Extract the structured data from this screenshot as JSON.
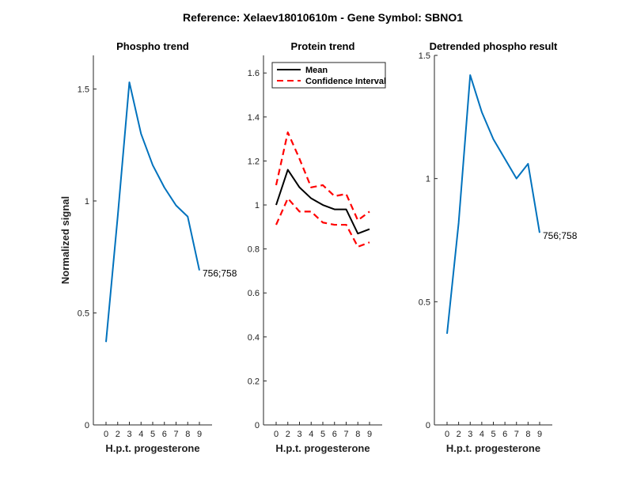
{
  "figure": {
    "suptitle": "Reference:  Xelaev18010610m - Gene Symbol:  SBNO1"
  },
  "chart_data": [
    {
      "type": "line",
      "title": "Phospho trend",
      "xlabel": "H.p.t. progesterone",
      "ylabel": "Normalized signal",
      "categories": [
        "0",
        "2",
        "3",
        "4",
        "5",
        "6",
        "7",
        "8",
        "9"
      ],
      "ylim": [
        0,
        1.65
      ],
      "yticks": [
        0,
        0.5,
        1,
        1.5
      ],
      "ytick_labels": [
        "0",
        "0.5",
        "1",
        "1.5"
      ],
      "series": [
        {
          "values": [
            0.37,
            0.93,
            1.53,
            1.3,
            1.16,
            1.06,
            0.98,
            0.93,
            0.69
          ],
          "color": "#0072BD",
          "style": "solid"
        }
      ],
      "annotation": "756;758"
    },
    {
      "type": "line",
      "title": "Protein trend",
      "xlabel": "H.p.t. progesterone",
      "ylabel": "",
      "categories": [
        "0",
        "2",
        "3",
        "4",
        "5",
        "6",
        "7",
        "8",
        "9"
      ],
      "ylim": [
        0,
        1.68
      ],
      "yticks": [
        0,
        0.2,
        0.4,
        0.6,
        0.8,
        1,
        1.2,
        1.4,
        1.6
      ],
      "ytick_labels": [
        "0",
        "0.2",
        "0.4",
        "0.6",
        "0.8",
        "1",
        "1.2",
        "1.4",
        "1.6"
      ],
      "legend": {
        "placement": "top-left",
        "entries": [
          "Mean",
          "Confidence Interval"
        ]
      },
      "series": [
        {
          "name": "Mean",
          "values": [
            1.0,
            1.16,
            1.08,
            1.03,
            1.0,
            0.98,
            0.98,
            0.87,
            0.89
          ],
          "color": "#000000",
          "style": "solid"
        },
        {
          "name": "Confidence Interval",
          "values": [
            1.09,
            1.33,
            1.21,
            1.08,
            1.09,
            1.04,
            1.05,
            0.93,
            0.97
          ],
          "color": "#FF0000",
          "style": "dashed"
        },
        {
          "name": "Confidence Interval",
          "values": [
            0.91,
            1.03,
            0.97,
            0.97,
            0.92,
            0.91,
            0.91,
            0.81,
            0.83
          ],
          "color": "#FF0000",
          "style": "dashed"
        }
      ]
    },
    {
      "type": "line",
      "title": "Detrended phospho result",
      "xlabel": "H.p.t. progesterone",
      "ylabel": "",
      "categories": [
        "0",
        "2",
        "3",
        "4",
        "5",
        "6",
        "7",
        "8",
        "9"
      ],
      "ylim": [
        0,
        1.5
      ],
      "yticks": [
        0,
        0.5,
        1,
        1.5
      ],
      "ytick_labels": [
        "0",
        "0.5",
        "1",
        "1.5"
      ],
      "series": [
        {
          "values": [
            0.37,
            0.82,
            1.42,
            1.27,
            1.16,
            1.08,
            1.0,
            1.06,
            0.78
          ],
          "color": "#0072BD",
          "style": "solid"
        }
      ],
      "annotation": "756;758"
    }
  ]
}
